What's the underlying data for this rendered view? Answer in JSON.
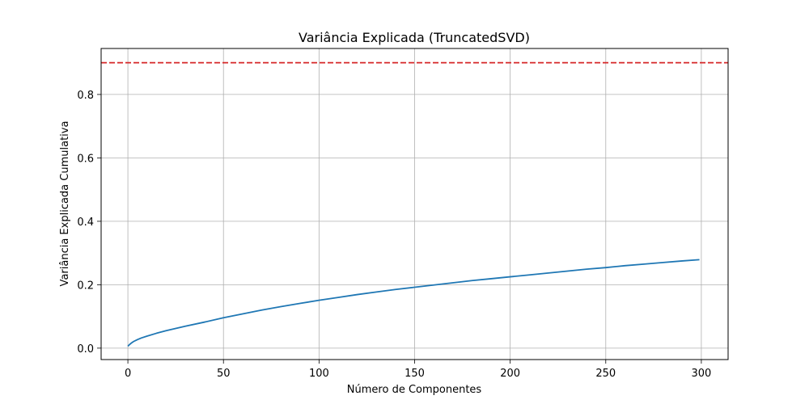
{
  "chart_data": {
    "type": "line",
    "title": "Variância Explicada (TruncatedSVD)",
    "xlabel": "Número de Componentes",
    "ylabel": "Variância Explicada Cumulativa",
    "xlim": [
      -14,
      314
    ],
    "ylim": [
      -0.036,
      0.945
    ],
    "xticks": [
      0,
      50,
      100,
      150,
      200,
      250,
      300
    ],
    "yticks": [
      0.0,
      0.2,
      0.4,
      0.6,
      0.8
    ],
    "ytick_labels": [
      "0.0",
      "0.2",
      "0.4",
      "0.6",
      "0.8"
    ],
    "grid": true,
    "series": [
      {
        "color": "#1f77b4",
        "x": [
          0,
          1,
          2,
          3,
          5,
          7,
          10,
          15,
          20,
          25,
          30,
          40,
          50,
          60,
          70,
          80,
          90,
          100,
          110,
          120,
          130,
          140,
          150,
          160,
          170,
          180,
          190,
          200,
          210,
          220,
          230,
          240,
          250,
          260,
          270,
          280,
          290,
          299
        ],
        "y": [
          0.006,
          0.012,
          0.017,
          0.021,
          0.027,
          0.032,
          0.038,
          0.047,
          0.055,
          0.062,
          0.069,
          0.082,
          0.096,
          0.108,
          0.12,
          0.131,
          0.141,
          0.151,
          0.16,
          0.169,
          0.177,
          0.185,
          0.192,
          0.199,
          0.206,
          0.213,
          0.219,
          0.225,
          0.231,
          0.237,
          0.243,
          0.249,
          0.254,
          0.26,
          0.265,
          0.27,
          0.275,
          0.279
        ]
      }
    ],
    "reference_line": {
      "y": 0.9,
      "color": "#d62728",
      "style": "dashed"
    }
  }
}
